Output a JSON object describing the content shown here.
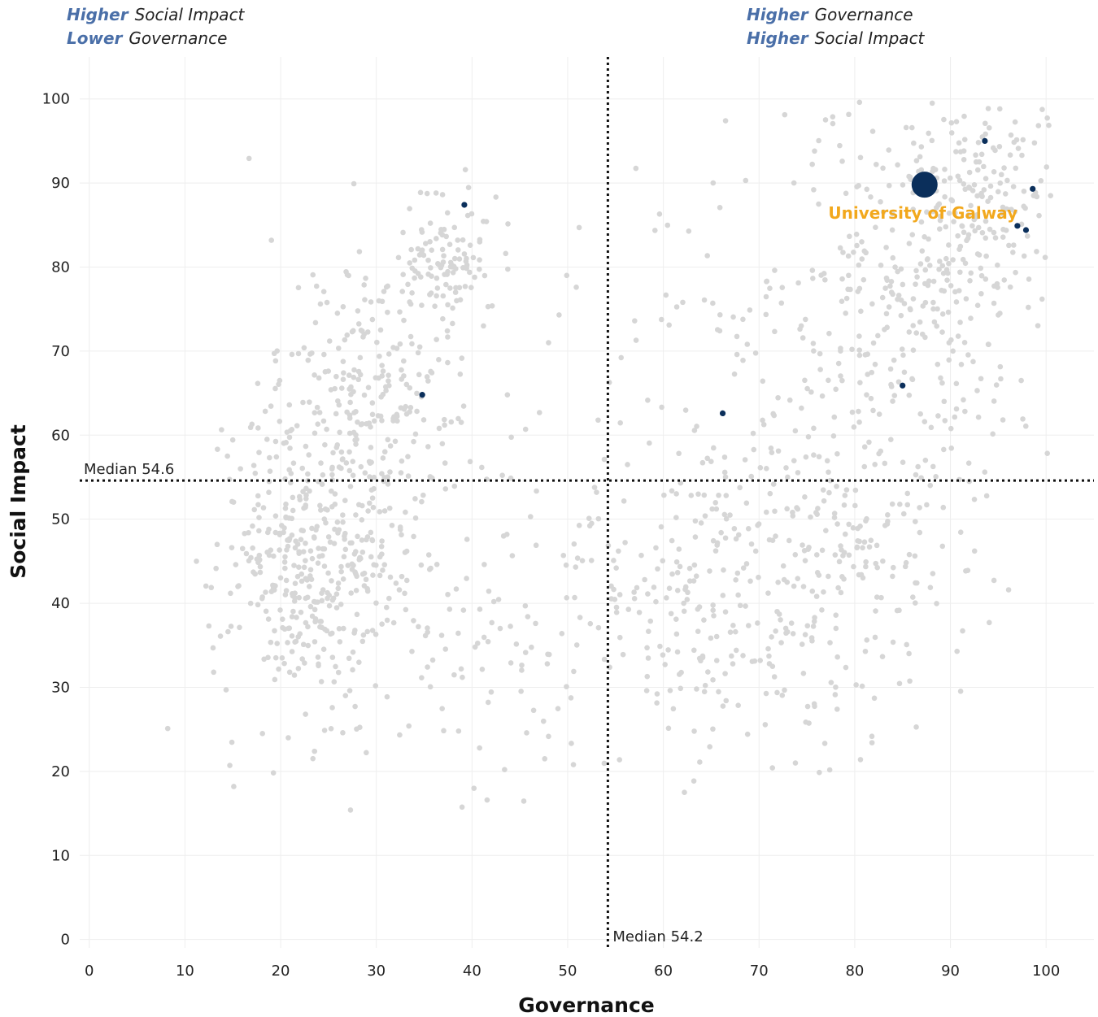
{
  "quadrant_notes": {
    "top_left": {
      "line1_em": "Higher",
      "line1_text": "Social Impact",
      "line2_em": "Lower",
      "line2_text": "Governance"
    },
    "top_right": {
      "line1_em": "Higher",
      "line1_text": "Governance",
      "line2_em": "Higher",
      "line2_text": "Social Impact"
    }
  },
  "colors": {
    "background_point": "#d6d6d6",
    "highlight_point": "#0b2f5b",
    "highlight_label": "#f2a81d",
    "grid": "#eeeeee",
    "median_line": "#111111",
    "emphasis_text": "#4a6fa8"
  },
  "chart_data": {
    "type": "scatter",
    "xlabel": "Governance",
    "ylabel": "Social Impact",
    "xlim": [
      -1,
      105
    ],
    "ylim": [
      -1,
      105
    ],
    "grid": true,
    "x_ticks": [
      0,
      10,
      20,
      30,
      40,
      50,
      60,
      70,
      80,
      90,
      100
    ],
    "y_ticks": [
      0,
      10,
      20,
      30,
      40,
      50,
      60,
      70,
      80,
      90,
      100
    ],
    "median_x": {
      "value": 54.2,
      "label": "Median 54.2"
    },
    "median_y": {
      "value": 54.6,
      "label": "Median 54.6"
    },
    "highlighted": {
      "name": "University of Galway",
      "x": 87.3,
      "y": 89.8
    },
    "peer_points": [
      {
        "x": 39.2,
        "y": 87.4
      },
      {
        "x": 34.8,
        "y": 64.8
      },
      {
        "x": 66.2,
        "y": 62.6
      },
      {
        "x": 85.0,
        "y": 65.9
      },
      {
        "x": 93.6,
        "y": 95.0
      },
      {
        "x": 98.6,
        "y": 89.3
      },
      {
        "x": 97.0,
        "y": 84.9
      },
      {
        "x": 97.9,
        "y": 84.4
      }
    ],
    "background_points": [
      [
        8.2,
        25.1
      ],
      [
        11.2,
        45.0
      ],
      [
        12.5,
        37.3
      ],
      [
        13.0,
        31.8
      ],
      [
        14.3,
        29.7
      ],
      [
        15.1,
        18.2
      ],
      [
        15.8,
        56.0
      ],
      [
        17.0,
        61.3
      ],
      [
        18.1,
        24.5
      ],
      [
        19.9,
        66.5
      ],
      [
        20.8,
        24.0
      ],
      [
        22.6,
        26.8
      ],
      [
        27.3,
        15.4
      ],
      [
        33.4,
        25.4
      ],
      [
        38.6,
        24.8
      ],
      [
        47.6,
        21.5
      ],
      [
        50.6,
        20.8
      ],
      [
        50.9,
        77.6
      ],
      [
        48.0,
        71.0
      ],
      [
        49.1,
        74.3
      ],
      [
        49.9,
        79.0
      ],
      [
        51.2,
        84.7
      ],
      [
        65.2,
        90.0
      ],
      [
        66.5,
        97.4
      ],
      [
        68.6,
        90.3
      ],
      [
        59.6,
        86.3
      ],
      [
        75.8,
        93.8
      ],
      [
        88.1,
        99.5
      ],
      [
        80.6,
        21.4
      ],
      [
        62.2,
        17.5
      ],
      [
        73.8,
        21.0
      ],
      [
        97.4,
        66.5
      ],
      [
        95.0,
        74.3
      ],
      [
        92.8,
        65.3
      ],
      [
        57.0,
        73.6
      ],
      [
        60.6,
        73.1
      ],
      [
        41.2,
        73.0
      ],
      [
        43.7,
        64.8
      ],
      [
        45.6,
        60.7
      ],
      [
        43.3,
        48.0
      ],
      [
        46.7,
        46.9
      ],
      [
        52.5,
        49.5
      ]
    ],
    "background_clusters": [
      {
        "cx": 24.0,
        "cy": 45.0,
        "sx": 4.8,
        "sy": 9.0,
        "n": 430
      },
      {
        "cx": 30.0,
        "cy": 66.0,
        "sx": 4.5,
        "sy": 8.5,
        "n": 230
      },
      {
        "cx": 37.5,
        "cy": 81.5,
        "sx": 2.8,
        "sy": 4.2,
        "n": 100
      },
      {
        "cx": 43.0,
        "cy": 37.0,
        "sx": 7.0,
        "sy": 9.0,
        "n": 80
      },
      {
        "cx": 66.0,
        "cy": 40.0,
        "sx": 8.5,
        "sy": 10.0,
        "n": 220
      },
      {
        "cx": 76.0,
        "cy": 44.0,
        "sx": 7.5,
        "sy": 10.0,
        "n": 160
      },
      {
        "cx": 85.0,
        "cy": 73.0,
        "sx": 7.0,
        "sy": 12.0,
        "n": 300
      },
      {
        "cx": 93.0,
        "cy": 88.0,
        "sx": 5.5,
        "sy": 7.0,
        "n": 200
      },
      {
        "cx": 66.0,
        "cy": 68.0,
        "sx": 6.0,
        "sy": 9.0,
        "n": 60
      }
    ]
  }
}
